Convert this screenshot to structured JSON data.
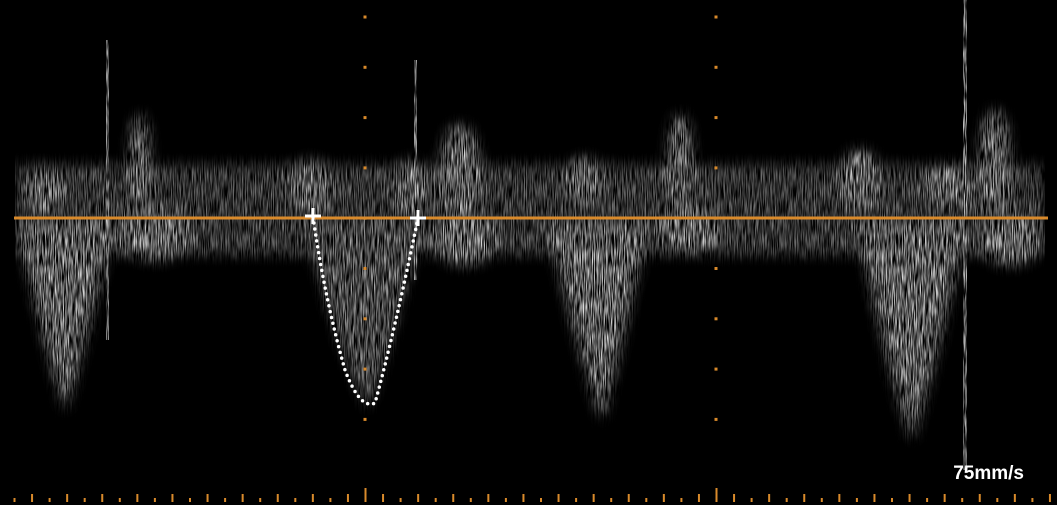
{
  "sweep_speed": "75mm/s"
}
